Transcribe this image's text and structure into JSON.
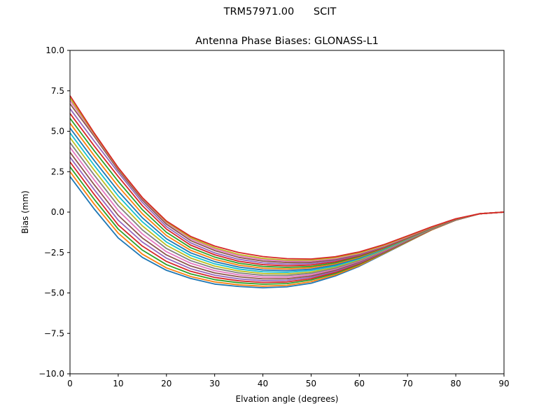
{
  "figure": {
    "suptitle": "TRM57971.00      SCIT"
  },
  "chart_data": {
    "type": "line",
    "title": "Antenna Phase Biases: GLONASS-L1",
    "xlabel": "Elvation angle (degrees)",
    "ylabel": "Bias (mm)",
    "xlim": [
      0,
      90
    ],
    "ylim": [
      -10,
      10
    ],
    "xticks": [
      0,
      10,
      20,
      30,
      40,
      50,
      60,
      70,
      80,
      90
    ],
    "yticks": [
      -10.0,
      -7.5,
      -5.0,
      -2.5,
      0.0,
      2.5,
      5.0,
      7.5,
      10.0
    ],
    "xtick_labels": [
      "0",
      "10",
      "20",
      "30",
      "40",
      "50",
      "60",
      "70",
      "80",
      "90"
    ],
    "ytick_labels": [
      "−10.0",
      "−7.5",
      "−5.0",
      "−2.5",
      "0.0",
      "2.5",
      "5.0",
      "7.5",
      "10.0"
    ],
    "grid": false,
    "x": [
      0,
      5,
      10,
      15,
      20,
      25,
      30,
      35,
      40,
      45,
      50,
      55,
      60,
      65,
      70,
      75,
      80,
      85,
      90
    ],
    "series": [
      {
        "color": "#1f77b4",
        "values": [
          2.2,
          0.2,
          -1.6,
          -2.8,
          -3.6,
          -4.1,
          -4.45,
          -4.6,
          -4.68,
          -4.62,
          -4.4,
          -3.95,
          -3.35,
          -2.6,
          -1.85,
          -1.1,
          -0.5,
          -0.1,
          0.0
        ]
      },
      {
        "color": "#ff7f0e",
        "values": [
          2.5,
          0.5,
          -1.3,
          -2.6,
          -3.45,
          -3.98,
          -4.32,
          -4.5,
          -4.58,
          -4.53,
          -4.3,
          -3.88,
          -3.3,
          -2.57,
          -1.83,
          -1.1,
          -0.5,
          -0.1,
          0.0
        ]
      },
      {
        "color": "#2ca02c",
        "values": [
          2.8,
          0.8,
          -1.05,
          -2.35,
          -3.25,
          -3.82,
          -4.18,
          -4.37,
          -4.46,
          -4.42,
          -4.2,
          -3.8,
          -3.23,
          -2.53,
          -1.8,
          -1.08,
          -0.49,
          -0.1,
          0.0
        ]
      },
      {
        "color": "#d62728",
        "values": [
          3.1,
          1.1,
          -0.8,
          -2.1,
          -3.05,
          -3.66,
          -4.04,
          -4.25,
          -4.35,
          -4.32,
          -4.12,
          -3.73,
          -3.18,
          -2.5,
          -1.78,
          -1.07,
          -0.49,
          -0.1,
          0.0
        ]
      },
      {
        "color": "#9467bd",
        "values": [
          3.4,
          1.4,
          -0.5,
          -1.85,
          -2.85,
          -3.5,
          -3.9,
          -4.13,
          -4.24,
          -4.22,
          -4.03,
          -3.66,
          -3.13,
          -2.47,
          -1.76,
          -1.06,
          -0.48,
          -0.1,
          0.0
        ]
      },
      {
        "color": "#8c564b",
        "values": [
          3.7,
          1.7,
          -0.2,
          -1.6,
          -2.65,
          -3.33,
          -3.76,
          -4.0,
          -4.13,
          -4.12,
          -3.95,
          -3.6,
          -3.08,
          -2.44,
          -1.74,
          -1.05,
          -0.48,
          -0.1,
          0.0
        ]
      },
      {
        "color": "#e377c2",
        "values": [
          4.0,
          2.0,
          0.1,
          -1.35,
          -2.45,
          -3.16,
          -3.62,
          -3.88,
          -4.02,
          -4.02,
          -3.87,
          -3.53,
          -3.03,
          -2.41,
          -1.72,
          -1.04,
          -0.47,
          -0.1,
          0.0
        ]
      },
      {
        "color": "#7f7f7f",
        "values": [
          4.3,
          2.3,
          0.4,
          -1.1,
          -2.25,
          -3.0,
          -3.48,
          -3.76,
          -3.91,
          -3.92,
          -3.78,
          -3.47,
          -2.99,
          -2.38,
          -1.7,
          -1.03,
          -0.47,
          -0.1,
          0.0
        ]
      },
      {
        "color": "#bcbd22",
        "values": [
          4.6,
          2.6,
          0.7,
          -0.85,
          -2.05,
          -2.84,
          -3.34,
          -3.64,
          -3.8,
          -3.82,
          -3.7,
          -3.4,
          -2.94,
          -2.35,
          -1.68,
          -1.02,
          -0.46,
          -0.1,
          0.0
        ]
      },
      {
        "color": "#17becf",
        "values": [
          4.9,
          2.9,
          1.0,
          -0.6,
          -1.85,
          -2.68,
          -3.2,
          -3.52,
          -3.69,
          -3.72,
          -3.61,
          -3.34,
          -2.89,
          -2.32,
          -1.66,
          -1.01,
          -0.46,
          -0.1,
          0.0
        ]
      },
      {
        "color": "#1f77b4",
        "values": [
          5.2,
          3.2,
          1.3,
          -0.35,
          -1.65,
          -2.52,
          -3.06,
          -3.4,
          -3.58,
          -3.62,
          -3.53,
          -3.27,
          -2.84,
          -2.28,
          -1.64,
          -1.0,
          -0.45,
          -0.1,
          0.0
        ]
      },
      {
        "color": "#ff7f0e",
        "values": [
          5.5,
          3.5,
          1.6,
          -0.1,
          -1.45,
          -2.36,
          -2.92,
          -3.28,
          -3.47,
          -3.52,
          -3.44,
          -3.2,
          -2.79,
          -2.25,
          -1.62,
          -0.99,
          -0.45,
          -0.1,
          0.0
        ]
      },
      {
        "color": "#2ca02c",
        "values": [
          5.8,
          3.8,
          1.9,
          0.15,
          -1.25,
          -2.2,
          -2.78,
          -3.16,
          -3.36,
          -3.42,
          -3.36,
          -3.14,
          -2.74,
          -2.22,
          -1.6,
          -0.98,
          -0.44,
          -0.1,
          0.0
        ]
      },
      {
        "color": "#d62728",
        "values": [
          6.1,
          4.1,
          2.2,
          0.4,
          -1.05,
          -2.04,
          -2.64,
          -3.04,
          -3.25,
          -3.32,
          -3.27,
          -3.07,
          -2.69,
          -2.19,
          -1.58,
          -0.97,
          -0.44,
          -0.1,
          0.0
        ]
      },
      {
        "color": "#9467bd",
        "values": [
          6.4,
          4.4,
          2.45,
          0.6,
          -0.9,
          -1.9,
          -2.52,
          -2.92,
          -3.14,
          -3.22,
          -3.18,
          -3.0,
          -2.64,
          -2.15,
          -1.55,
          -0.96,
          -0.43,
          -0.1,
          0.0
        ]
      },
      {
        "color": "#8c564b",
        "values": [
          6.7,
          4.7,
          2.6,
          0.75,
          -0.75,
          -1.76,
          -2.38,
          -2.8,
          -3.03,
          -3.12,
          -3.1,
          -2.94,
          -2.6,
          -2.12,
          -1.53,
          -0.95,
          -0.43,
          -0.1,
          0.0
        ]
      },
      {
        "color": "#e377c2",
        "values": [
          6.9,
          4.8,
          2.7,
          0.85,
          -0.65,
          -1.65,
          -2.28,
          -2.7,
          -2.94,
          -3.04,
          -3.03,
          -2.88,
          -2.56,
          -2.1,
          -1.52,
          -0.94,
          -0.42,
          -0.1,
          0.0
        ]
      },
      {
        "color": "#bcbd22",
        "values": [
          7.05,
          4.85,
          2.72,
          0.88,
          -0.6,
          -1.58,
          -2.2,
          -2.62,
          -2.86,
          -2.97,
          -2.97,
          -2.82,
          -2.52,
          -2.07,
          -1.5,
          -0.93,
          -0.42,
          -0.1,
          0.0
        ]
      },
      {
        "color": "#d62728",
        "values": [
          7.2,
          4.9,
          2.75,
          0.9,
          -0.55,
          -1.5,
          -2.1,
          -2.5,
          -2.75,
          -2.88,
          -2.9,
          -2.76,
          -2.46,
          -2.02,
          -1.47,
          -0.91,
          -0.41,
          -0.1,
          0.0
        ]
      }
    ]
  }
}
